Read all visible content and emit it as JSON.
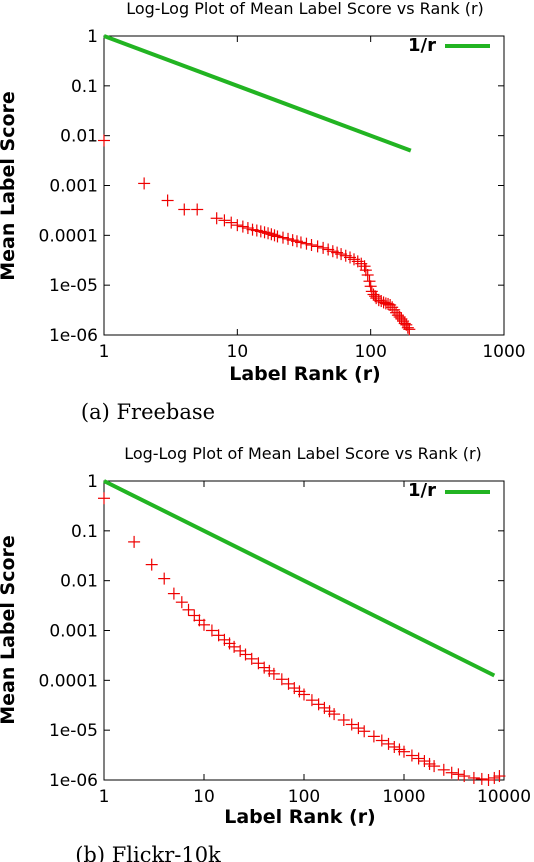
{
  "chart_data": [
    {
      "type": "scatter",
      "title": "Log-Log Plot of Mean Label Score vs Rank (r)",
      "xlabel": "Label Rank (r)",
      "ylabel": "Mean Label Score",
      "xscale": "log",
      "yscale": "log",
      "xlim": [
        1,
        1000
      ],
      "ylim": [
        1e-06,
        1
      ],
      "xticks": [
        "1",
        "10",
        "100",
        "1000"
      ],
      "yticks": [
        "1",
        "0.1",
        "0.01",
        "0.001",
        "0.0001",
        "1e-05",
        "1e-06"
      ],
      "legend_position": "top-right",
      "caption": "(a) Freebase",
      "series": [
        {
          "name": "1/r",
          "kind": "line",
          "color": "#22b422",
          "x": [
            1,
            200
          ],
          "y": [
            1,
            0.005
          ]
        },
        {
          "kind": "points",
          "color": "#ee0000",
          "marker": "plus",
          "x": [
            1,
            2,
            3,
            4,
            5,
            7,
            8,
            9,
            10,
            11,
            12,
            13,
            14,
            15,
            16,
            17,
            18,
            19,
            20,
            22,
            24,
            26,
            28,
            30,
            33,
            36,
            40,
            44,
            48,
            52,
            56,
            60,
            65,
            70,
            75,
            80,
            85,
            90,
            92,
            95,
            98,
            100,
            102,
            105,
            108,
            110,
            115,
            120,
            125,
            130,
            135,
            140,
            145,
            150,
            155,
            160,
            165,
            170,
            175,
            180,
            185,
            190,
            195
          ],
          "y": [
            0.008,
            0.0011,
            0.0005,
            0.00033,
            0.00033,
            0.00022,
            0.0002,
            0.00018,
            0.00016,
            0.00015,
            0.00014,
            0.00013,
            0.000125,
            0.00012,
            0.000115,
            0.00011,
            0.000105,
            0.0001,
            9.5e-05,
            9e-05,
            8.5e-05,
            8e-05,
            7.6e-05,
            7.2e-05,
            6.8e-05,
            6.4e-05,
            6e-05,
            5.6e-05,
            5.2e-05,
            4.8e-05,
            4.5e-05,
            4.2e-05,
            3.9e-05,
            3.6e-05,
            3.3e-05,
            3e-05,
            2.7e-05,
            2.4e-05,
            2e-05,
            1.6e-05,
            1.2e-05,
            9.5e-06,
            7.5e-06,
            6.5e-06,
            6e-06,
            5.5e-06,
            5e-06,
            4.8e-06,
            4.5e-06,
            4.3e-06,
            4.2e-06,
            4e-06,
            3.6e-06,
            3.2e-06,
            2.8e-06,
            2.5e-06,
            2.3e-06,
            2.1e-06,
            1.9e-06,
            1.7e-06,
            1.6e-06,
            1.4e-06,
            1.3e-06
          ]
        }
      ]
    },
    {
      "type": "scatter",
      "title": "Log-Log Plot of Mean Label Score vs Rank (r)",
      "xlabel": "Label Rank (r)",
      "ylabel": "Mean Label Score",
      "xscale": "log",
      "yscale": "log",
      "xlim": [
        1,
        10000
      ],
      "ylim": [
        1e-06,
        1
      ],
      "xticks": [
        "1",
        "10",
        "100",
        "1000",
        "10000"
      ],
      "yticks": [
        "1",
        "0.1",
        "0.01",
        "0.001",
        "0.0001",
        "1e-05",
        "1e-06"
      ],
      "legend_position": "top-right",
      "caption": "(b) Flickr-10k",
      "series": [
        {
          "name": "1/r",
          "kind": "line",
          "color": "#22b422",
          "x": [
            1,
            8000
          ],
          "y": [
            1,
            0.000125
          ]
        },
        {
          "kind": "points",
          "color": "#ee0000",
          "marker": "plus",
          "x": [
            1,
            2,
            3,
            4,
            5,
            6,
            7,
            8,
            9,
            10,
            12,
            14,
            16,
            18,
            20,
            23,
            26,
            30,
            35,
            40,
            45,
            50,
            60,
            70,
            80,
            90,
            100,
            120,
            140,
            160,
            180,
            200,
            250,
            300,
            350,
            400,
            500,
            600,
            700,
            800,
            900,
            1000,
            1200,
            1400,
            1600,
            1800,
            2000,
            2500,
            3000,
            3500,
            4000,
            5000,
            6000,
            7000,
            8000,
            9000
          ],
          "y": [
            0.45,
            0.06,
            0.021,
            0.011,
            0.0055,
            0.0037,
            0.0026,
            0.002,
            0.0016,
            0.0013,
            0.001,
            0.0008,
            0.00065,
            0.00055,
            0.00047,
            0.00039,
            0.00033,
            0.00027,
            0.00022,
            0.00018,
            0.000155,
            0.000135,
            0.000105,
            8.5e-05,
            7e-05,
            6e-05,
            5.2e-05,
            4e-05,
            3.3e-05,
            2.8e-05,
            2.4e-05,
            2.1e-05,
            1.6e-05,
            1.3e-05,
            1.1e-05,
            9.5e-06,
            7.5e-06,
            6.2e-06,
            5.3e-06,
            4.6e-06,
            4.1e-06,
            3.7e-06,
            3.1e-06,
            2.7e-06,
            2.4e-06,
            2.1e-06,
            1.9e-06,
            1.6e-06,
            1.4e-06,
            1.3e-06,
            1.2e-06,
            1.1e-06,
            1.05e-06,
            1e-06,
            1.1e-06,
            1.2e-06
          ]
        }
      ]
    }
  ]
}
